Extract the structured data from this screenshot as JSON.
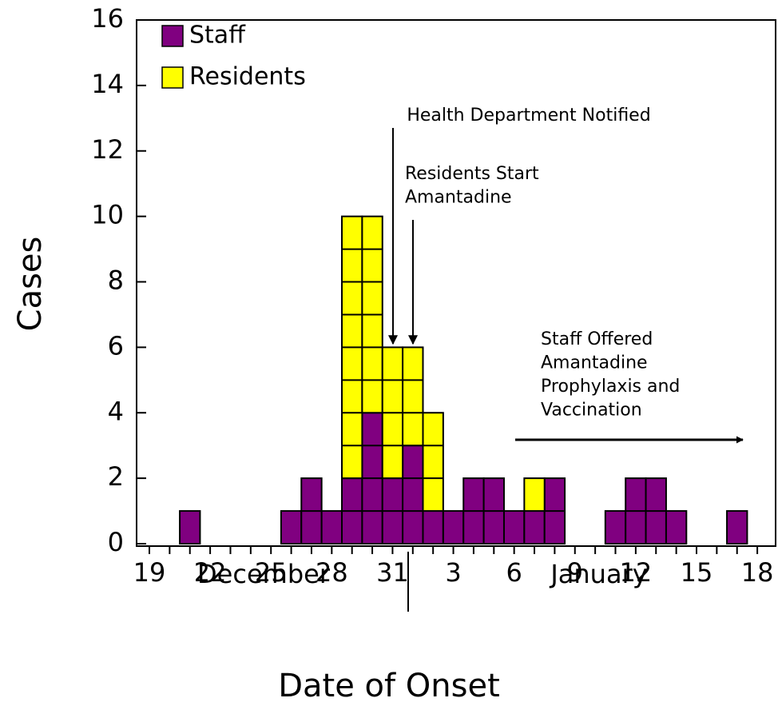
{
  "chart_data": {
    "type": "bar",
    "stacked": true,
    "xlabel": "Date of Onset",
    "ylabel": "Cases",
    "categories": [
      "19",
      null,
      null,
      "22",
      null,
      null,
      "25",
      null,
      null,
      "28",
      null,
      null,
      "31",
      null,
      null,
      "3",
      null,
      null,
      "6",
      null,
      null,
      "9",
      null,
      null,
      "12",
      null,
      null,
      "15",
      null,
      null,
      "18"
    ],
    "month_labels": [
      "December",
      "January"
    ],
    "series": [
      {
        "name": "Staff",
        "color": "#800080",
        "values": [
          0,
          0,
          1,
          0,
          0,
          0,
          0,
          1,
          2,
          1,
          2,
          4,
          2,
          3,
          1,
          1,
          2,
          2,
          1,
          1,
          2,
          0,
          0,
          1,
          2,
          2,
          1,
          0,
          0,
          1,
          0
        ]
      },
      {
        "name": "Residents",
        "color": "#ffff00",
        "values": [
          0,
          0,
          0,
          0,
          0,
          0,
          0,
          0,
          0,
          0,
          8,
          6,
          4,
          3,
          3,
          0,
          0,
          0,
          0,
          1,
          0,
          0,
          0,
          0,
          0,
          0,
          0,
          0,
          0,
          0,
          0
        ]
      }
    ],
    "ylim": [
      0,
      16
    ],
    "yticks": [
      0,
      2,
      4,
      6,
      8,
      10,
      12,
      14,
      16
    ],
    "legend": "upper left",
    "annotations": [
      [
        "Health Department Notified"
      ],
      [
        "Residents Start",
        "Amantadine"
      ],
      [
        "Staff Offered",
        "Amantadine",
        "Prophylaxis and",
        "Vaccination"
      ]
    ]
  }
}
